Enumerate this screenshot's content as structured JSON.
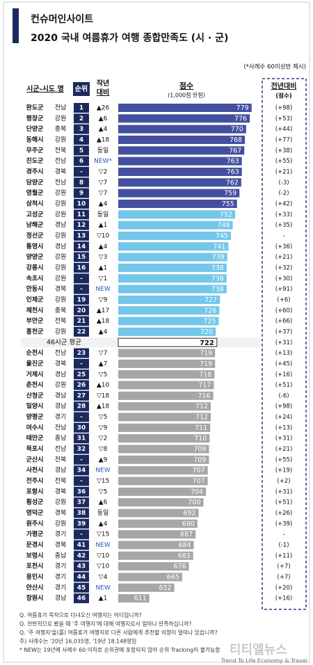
{
  "chart_data": {
    "type": "bar",
    "orientation": "horizontal",
    "brand": "컨슈머인사이트",
    "title": "2020 국내 여름휴가 여행 종합만족도 (시 · 군)",
    "note": "(*사례수 60이상만 제시)",
    "headers": {
      "region": "시군-시도 명",
      "rank": "순위",
      "change_1": "작년",
      "change_2": "대비",
      "score": "점수",
      "score_sub": "(1,000점 만점)",
      "yoy": "전년대비",
      "yoy_sub": "(점수)"
    },
    "xlim": [
      560,
      785
    ],
    "rows": [
      {
        "region": "완도군",
        "province": "전남",
        "rank": "1",
        "change": "▲26",
        "score": 779,
        "yoy": "(+98)",
        "color": "#44509f"
      },
      {
        "region": "평창군",
        "province": "강원",
        "rank": "2",
        "change": "▲6",
        "score": 776,
        "yoy": "(+53)",
        "color": "#44509f"
      },
      {
        "region": "단양군",
        "province": "충북",
        "rank": "3",
        "change": "▲4",
        "score": 770,
        "yoy": "(+44)",
        "color": "#44509f"
      },
      {
        "region": "동해시",
        "province": "강원",
        "rank": "4",
        "change": "▲18",
        "score": 768,
        "yoy": "(+77)",
        "color": "#44509f"
      },
      {
        "region": "무주군",
        "province": "전북",
        "rank": "5",
        "change": "동일",
        "score": 767,
        "yoy": "(+38)",
        "color": "#44509f"
      },
      {
        "region": "진도군",
        "province": "전남",
        "rank": "6",
        "change": "NEW*",
        "score": 763,
        "yoy": "(+55)",
        "color": "#44509f"
      },
      {
        "region": "경주시",
        "province": "경북",
        "rank": "-",
        "change": "▽2",
        "score": 763,
        "yoy": "(+21)",
        "color": "#44509f"
      },
      {
        "region": "담양군",
        "province": "전남",
        "rank": "8",
        "change": "▽7",
        "score": 762,
        "yoy": "(-3)",
        "color": "#44509f"
      },
      {
        "region": "영월군",
        "province": "강원",
        "rank": "9",
        "change": "▽7",
        "score": 759,
        "yoy": "(-2)",
        "color": "#44509f"
      },
      {
        "region": "삼척시",
        "province": "강원",
        "rank": "10",
        "change": "▲4",
        "score": 755,
        "yoy": "(+42)",
        "color": "#44509f"
      },
      {
        "region": "고성군",
        "province": "강원",
        "rank": "11",
        "change": "동일",
        "score": 752,
        "yoy": "(+33)",
        "color": "#72c7ea"
      },
      {
        "region": "남해군",
        "province": "경남",
        "rank": "12",
        "change": "▲1",
        "score": 748,
        "yoy": "(+35)",
        "color": "#72c7ea"
      },
      {
        "region": "정선군",
        "province": "강원",
        "rank": "13",
        "change": "▽10",
        "score": 745,
        "yoy": "-",
        "color": "#72c7ea"
      },
      {
        "region": "통영시",
        "province": "경남",
        "rank": "14",
        "change": "▲4",
        "score": 741,
        "yoy": "(+36)",
        "color": "#72c7ea"
      },
      {
        "region": "양양군",
        "province": "강원",
        "rank": "15",
        "change": "▽3",
        "score": 739,
        "yoy": "(+21)",
        "color": "#72c7ea"
      },
      {
        "region": "강릉시",
        "province": "강원",
        "rank": "16",
        "change": "▲1",
        "score": 738,
        "yoy": "(+32)",
        "color": "#72c7ea"
      },
      {
        "region": "속초시",
        "province": "강원",
        "rank": "-",
        "change": "▽1",
        "score": 738,
        "yoy": "(+30)",
        "color": "#72c7ea"
      },
      {
        "region": "안동시",
        "province": "경북",
        "rank": "-",
        "change": "NEW",
        "score": 738,
        "yoy": "(+91)",
        "color": "#72c7ea"
      },
      {
        "region": "인제군",
        "province": "강원",
        "rank": "19",
        "change": "▽9",
        "score": 727,
        "yoy": "(+6)",
        "color": "#72c7ea"
      },
      {
        "region": "제천시",
        "province": "충북",
        "rank": "20",
        "change": "▲17",
        "score": 726,
        "yoy": "(+60)",
        "color": "#72c7ea"
      },
      {
        "region": "부안군",
        "province": "전북",
        "rank": "21",
        "change": "▲18",
        "score": 725,
        "yoy": "(+66)",
        "color": "#72c7ea"
      },
      {
        "region": "홍천군",
        "province": "강원",
        "rank": "22",
        "change": "▲4",
        "score": 720,
        "yoy": "(+37)",
        "color": "#72c7ea"
      },
      {
        "region": "순천시",
        "province": "전남",
        "rank": "23",
        "change": "▽7",
        "score": 719,
        "yoy": "(+13)",
        "color": "#a6a6a6"
      },
      {
        "region": "울진군",
        "province": "경북",
        "rank": "-",
        "change": "▲7",
        "score": 719,
        "yoy": "(+45)",
        "color": "#a6a6a6"
      },
      {
        "region": "거제시",
        "province": "경남",
        "rank": "25",
        "change": "▽5",
        "score": 718,
        "yoy": "(+16)",
        "color": "#a6a6a6"
      },
      {
        "region": "춘천시",
        "province": "강원",
        "rank": "26",
        "change": "▲10",
        "score": 717,
        "yoy": "(+51)",
        "color": "#a6a6a6"
      },
      {
        "region": "산청군",
        "province": "경남",
        "rank": "27",
        "change": "▽18",
        "score": 716,
        "yoy": "(-6)",
        "color": "#a6a6a6"
      },
      {
        "region": "밀양시",
        "province": "경남",
        "rank": "28",
        "change": "▲18",
        "score": 712,
        "yoy": "(+98)",
        "color": "#a6a6a6"
      },
      {
        "region": "양평군",
        "province": "경기",
        "rank": "-",
        "change": "▽5",
        "score": 712,
        "yoy": "(+24)",
        "color": "#a6a6a6"
      },
      {
        "region": "여수시",
        "province": "전남",
        "rank": "30",
        "change": "▽9",
        "score": 711,
        "yoy": "(+13)",
        "color": "#a6a6a6"
      },
      {
        "region": "태안군",
        "province": "충남",
        "rank": "31",
        "change": "▽2",
        "score": 710,
        "yoy": "(+31)",
        "color": "#a6a6a6"
      },
      {
        "region": "목포시",
        "province": "전남",
        "rank": "32",
        "change": "▽8",
        "score": 709,
        "yoy": "(+21)",
        "color": "#a6a6a6"
      },
      {
        "region": "군산시",
        "province": "전북",
        "rank": "-",
        "change": "▲9",
        "score": 709,
        "yoy": "(+55)",
        "color": "#a6a6a6"
      },
      {
        "region": "사천시",
        "province": "경남",
        "rank": "34",
        "change": "NEW",
        "score": 707,
        "yoy": "(+19)",
        "color": "#a6a6a6"
      },
      {
        "region": "전주시",
        "province": "전북",
        "rank": "-",
        "change": "▽15",
        "score": 707,
        "yoy": "(+2)",
        "color": "#a6a6a6"
      },
      {
        "region": "포항시",
        "province": "경북",
        "rank": "36",
        "change": "▽5",
        "score": 704,
        "yoy": "(+31)",
        "color": "#a6a6a6"
      },
      {
        "region": "횡성군",
        "province": "강원",
        "rank": "37",
        "change": "▲6",
        "score": 700,
        "yoy": "(+51)",
        "color": "#a6a6a6"
      },
      {
        "region": "영덕군",
        "province": "경북",
        "rank": "38",
        "change": "동일",
        "score": 692,
        "yoy": "(+26)",
        "color": "#a6a6a6"
      },
      {
        "region": "원주시",
        "province": "강원",
        "rank": "39",
        "change": "▲4",
        "score": 690,
        "yoy": "(+39)",
        "color": "#a6a6a6"
      },
      {
        "region": "가평군",
        "province": "경기",
        "rank": "-",
        "change": "▽15",
        "score": 687,
        "yoy": "-",
        "color": "#a6a6a6"
      },
      {
        "region": "문경시",
        "province": "경북",
        "rank": "41",
        "change": "NEW",
        "score": 684,
        "yoy": "(-1)",
        "color": "#a6a6a6"
      },
      {
        "region": "보령시",
        "province": "충남",
        "rank": "42",
        "change": "▽10",
        "score": 683,
        "yoy": "(+11)",
        "color": "#a6a6a6"
      },
      {
        "region": "포천시",
        "province": "경기",
        "rank": "43",
        "change": "▽10",
        "score": 676,
        "yoy": "(+7)",
        "color": "#a6a6a6"
      },
      {
        "region": "용인시",
        "province": "경기",
        "rank": "44",
        "change": "▽4",
        "score": 665,
        "yoy": "(+7)",
        "color": "#a6a6a6"
      },
      {
        "region": "안산시",
        "province": "경기",
        "rank": "45",
        "change": "NEW",
        "score": 652,
        "yoy": "(+20)",
        "color": "#a6a6a6"
      },
      {
        "region": "창원시",
        "province": "경남",
        "rank": "46",
        "change": "▲1",
        "score": 611,
        "yoy": "(+16)",
        "color": "#a6a6a6"
      }
    ],
    "average": {
      "region": "46시군 평균",
      "score": 722,
      "yoy": "(+31)",
      "color": "#ffffff"
    },
    "footnotes": [
      "Q. 여름휴가 목적으로 다녀오신 여행지는 어디입니까?",
      "Q. 전반적으로 봤을 때 '주 여행지'에 대해 여행지로서 얼마나 만족하십니까?",
      "Q. '주 여행지'을(를) 여름휴가 여행지로 다른 사람에게 추천할 의향이 얼마나 있습니까?",
      "주) 사례수는 '20년 16,035명, '19년 18,148명임",
      "* NEW는 19년에 사례수 60 이하로 순위권에 포함되지 않아 순위 Tracking이 불가능함"
    ],
    "watermark": "티티엘뉴스",
    "watermark_sub": "Trend To Life Economy & Travel"
  }
}
